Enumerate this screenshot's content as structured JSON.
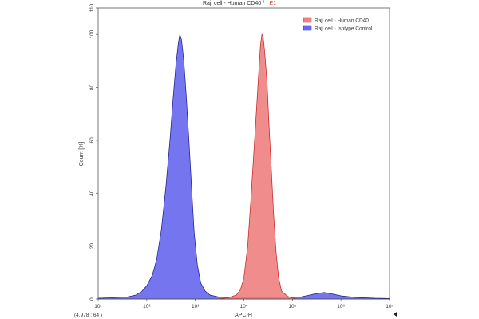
{
  "chart_data": {
    "type": "area",
    "title": "Raji cell - Human CD40 /",
    "title_accent": "E1",
    "xlabel": "APC-H",
    "ylabel": "Count [%]",
    "x_scale": "log",
    "xlim": [
      10,
      10000000
    ],
    "ylim": [
      0,
      110
    ],
    "x_ticks": [
      {
        "value": 10,
        "label": "10¹"
      },
      {
        "value": 100,
        "label": "10²"
      },
      {
        "value": 1000,
        "label": "10³"
      },
      {
        "value": 10000,
        "label": "10⁴"
      },
      {
        "value": 100000,
        "label": "10⁵"
      },
      {
        "value": 1000000,
        "label": "10⁶"
      },
      {
        "value": 10000000,
        "label": "10⁷"
      }
    ],
    "y_ticks": [
      0,
      20,
      40,
      60,
      80,
      100,
      110
    ],
    "grid": false,
    "legend_position": "top-right",
    "corner_note": "(4.978 ; 64 )",
    "series": [
      {
        "name": "Raji cell - Human CD40",
        "color": "#f08080",
        "edge": "#c02020",
        "points": [
          [
            3000,
            0
          ],
          [
            5000,
            0.6
          ],
          [
            7000,
            1.5
          ],
          [
            8500,
            3.5
          ],
          [
            10000,
            8
          ],
          [
            12000,
            20
          ],
          [
            14000,
            38
          ],
          [
            16000,
            55
          ],
          [
            18000,
            70
          ],
          [
            20000,
            84
          ],
          [
            22000,
            96
          ],
          [
            23500,
            100
          ],
          [
            25000,
            99
          ],
          [
            27000,
            93
          ],
          [
            30000,
            82
          ],
          [
            33000,
            66
          ],
          [
            37000,
            48
          ],
          [
            41000,
            32
          ],
          [
            46000,
            18
          ],
          [
            52000,
            8
          ],
          [
            60000,
            3
          ],
          [
            80000,
            1
          ],
          [
            120000,
            0
          ]
        ]
      },
      {
        "name": "Raji cell - Isotype Control",
        "color": "#6666ee",
        "edge": "#1a1a8a",
        "points": [
          [
            10,
            0.3
          ],
          [
            20,
            0.5
          ],
          [
            40,
            0.8
          ],
          [
            60,
            1.5
          ],
          [
            80,
            3
          ],
          [
            100,
            5
          ],
          [
            130,
            9
          ],
          [
            160,
            15
          ],
          [
            200,
            26
          ],
          [
            250,
            43
          ],
          [
            300,
            60
          ],
          [
            350,
            76
          ],
          [
            400,
            89
          ],
          [
            450,
            97
          ],
          [
            480,
            100
          ],
          [
            520,
            98
          ],
          [
            580,
            90
          ],
          [
            650,
            77
          ],
          [
            750,
            58
          ],
          [
            850,
            40
          ],
          [
            950,
            25
          ],
          [
            1100,
            13
          ],
          [
            1300,
            6
          ],
          [
            1600,
            3
          ],
          [
            2000,
            1.5
          ],
          [
            3000,
            0.8
          ],
          [
            10000,
            0.5
          ],
          [
            50000,
            0.6
          ],
          [
            150000,
            0.8
          ],
          [
            300000,
            2
          ],
          [
            450000,
            2.5
          ],
          [
            700000,
            1.8
          ],
          [
            1000000,
            1.2
          ],
          [
            2000000,
            0.6
          ],
          [
            5000000,
            0.3
          ],
          [
            10000000,
            0.2
          ]
        ]
      }
    ]
  }
}
